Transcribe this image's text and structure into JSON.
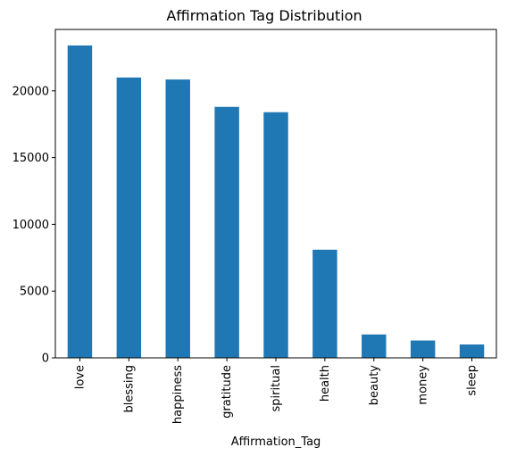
{
  "chart_data": {
    "type": "bar",
    "title": "Affirmation Tag Distribution",
    "xlabel": "Affirmation_Tag",
    "ylabel": "",
    "categories": [
      "love",
      "blessing",
      "happiness",
      "gratitude",
      "spiritual",
      "health",
      "beauty",
      "money",
      "sleep"
    ],
    "values": [
      23400,
      21000,
      20850,
      18800,
      18400,
      8100,
      1750,
      1300,
      1000
    ],
    "yticks": [
      0,
      5000,
      10000,
      15000,
      20000
    ],
    "ylim": [
      0,
      24600
    ],
    "bar_color": "#1f77b4",
    "grid": false,
    "legend": "none"
  }
}
